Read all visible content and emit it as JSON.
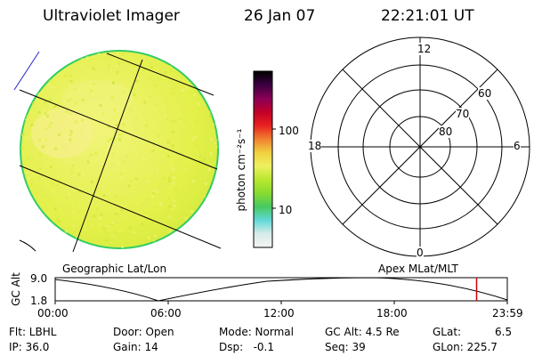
{
  "header": {
    "instrument": "Ultraviolet Imager",
    "date": "26 Jan 07",
    "time": "22:21:01 UT"
  },
  "colors": {
    "disk_fill": "#e6f24a",
    "disk_edge": "#33cc66",
    "plot_line": "#000000",
    "marker": "#cc0000"
  },
  "colorbar": {
    "label": "photon cm⁻²s⁻¹",
    "ticks": [
      "100",
      "10"
    ],
    "gradient": [
      "#f4f4f4",
      "#d8ece8",
      "#60d8d8",
      "#48c860",
      "#88dc30",
      "#b8e830",
      "#eef060",
      "#f0d040",
      "#f08030",
      "#e82020",
      "#c00028",
      "#880058",
      "#3a0040",
      "#000000"
    ]
  },
  "polar": {
    "mlt_labels": [
      "12",
      "18",
      "6",
      "0"
    ],
    "mlat_labels": [
      "60",
      "70",
      "80"
    ]
  },
  "captions": {
    "left": "Geographic Lat/Lon",
    "right": "Apex MLat/MLT"
  },
  "altitude_plot": {
    "ylabel": "GC Alt",
    "yticks": [
      "9.0",
      "1.8"
    ],
    "xticks": [
      "00:00",
      "06:00",
      "12:00",
      "18:00",
      "23:59"
    ],
    "current_time_fraction": 0.932
  },
  "status": {
    "flt": "Flt: LBHL",
    "ip": "IP: 36.0",
    "door": "Door: Open",
    "gain": "Gain: 14",
    "mode": "Mode: Normal",
    "dsp": "Dsp:   -0.1",
    "gc_alt": "GC Alt: 4.5 Re",
    "seq": "Seq: 39",
    "glat_label": "GLat:",
    "glat_value": "6.5",
    "glon": "GLon: 225.7"
  }
}
